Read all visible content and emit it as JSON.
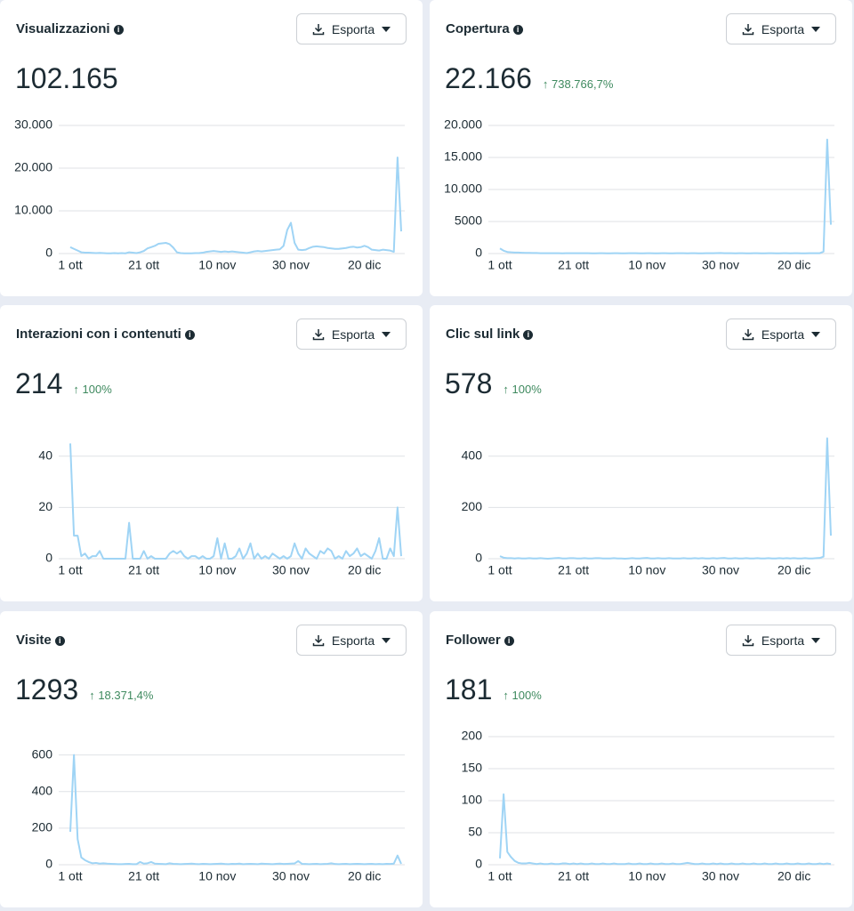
{
  "chart_data": [
    {
      "type": "line",
      "title": "Visualizzazioni",
      "total": "102.165",
      "export": "Esporta",
      "color": "#9fd4f5",
      "grid": true,
      "ylim": [
        0,
        30000
      ],
      "yticks": [
        0,
        {
          "value": 10000,
          "label": "10.000"
        },
        {
          "value": 20000,
          "label": "20.000"
        },
        {
          "value": 30000,
          "label": "30.000"
        }
      ],
      "categories": [
        "1 ott",
        null,
        null,
        null,
        null,
        null,
        null,
        null,
        null,
        null,
        null,
        null,
        null,
        null,
        null,
        null,
        null,
        null,
        null,
        null,
        "21 ott",
        null,
        null,
        null,
        null,
        null,
        null,
        null,
        null,
        null,
        null,
        null,
        null,
        null,
        null,
        null,
        null,
        null,
        null,
        null,
        "10 nov",
        null,
        null,
        null,
        null,
        null,
        null,
        null,
        null,
        null,
        null,
        null,
        null,
        null,
        null,
        null,
        null,
        null,
        null,
        null,
        "30 nov",
        null,
        null,
        null,
        null,
        null,
        null,
        null,
        null,
        null,
        null,
        null,
        null,
        null,
        null,
        null,
        null,
        null,
        null,
        null,
        "20 dic",
        null,
        null,
        null,
        null,
        null,
        null,
        null,
        null,
        null,
        null
      ],
      "values": [
        1500,
        1100,
        700,
        300,
        200,
        200,
        150,
        100,
        150,
        100,
        50,
        50,
        100,
        50,
        100,
        50,
        300,
        200,
        100,
        300,
        600,
        1200,
        1500,
        1800,
        2300,
        2400,
        2500,
        2200,
        1400,
        300,
        100,
        50,
        50,
        50,
        100,
        100,
        200,
        400,
        500,
        600,
        500,
        400,
        500,
        400,
        500,
        400,
        300,
        200,
        100,
        300,
        500,
        600,
        500,
        600,
        700,
        800,
        900,
        1000,
        1800,
        5500,
        7200,
        2500,
        900,
        800,
        900,
        1300,
        1600,
        1700,
        1600,
        1500,
        1300,
        1200,
        1100,
        1100,
        1200,
        1300,
        1500,
        1600,
        1400,
        1500,
        1800,
        1500,
        900,
        800,
        700,
        900,
        800,
        700,
        400,
        22500,
        5200
      ]
    },
    {
      "type": "line",
      "title": "Copertura",
      "total": "22.166",
      "change": "738.766,7%",
      "export": "Esporta",
      "color": "#9fd4f5",
      "grid": true,
      "ylim": [
        0,
        20000
      ],
      "yticks": [
        0,
        5000,
        {
          "value": 10000,
          "label": "10.000"
        },
        {
          "value": 15000,
          "label": "15.000"
        },
        {
          "value": 20000,
          "label": "20.000"
        }
      ],
      "categories": [
        "1 ott",
        null,
        null,
        null,
        null,
        null,
        null,
        null,
        null,
        null,
        null,
        null,
        null,
        null,
        null,
        null,
        null,
        null,
        null,
        null,
        "21 ott",
        null,
        null,
        null,
        null,
        null,
        null,
        null,
        null,
        null,
        null,
        null,
        null,
        null,
        null,
        null,
        null,
        null,
        null,
        null,
        "10 nov",
        null,
        null,
        null,
        null,
        null,
        null,
        null,
        null,
        null,
        null,
        null,
        null,
        null,
        null,
        null,
        null,
        null,
        null,
        null,
        "30 nov",
        null,
        null,
        null,
        null,
        null,
        null,
        null,
        null,
        null,
        null,
        null,
        null,
        null,
        null,
        null,
        null,
        null,
        null,
        null,
        "20 dic",
        null,
        null,
        null,
        null,
        null,
        null,
        null,
        null,
        null,
        null
      ],
      "values": [
        800,
        450,
        250,
        200,
        150,
        150,
        120,
        100,
        100,
        80,
        80,
        60,
        60,
        50,
        60,
        50,
        50,
        40,
        50,
        60,
        60,
        50,
        50,
        60,
        50,
        40,
        40,
        50,
        50,
        40,
        40,
        50,
        50,
        40,
        40,
        50,
        60,
        50,
        40,
        40,
        50,
        50,
        40,
        40,
        50,
        50,
        40,
        40,
        50,
        60,
        50,
        40,
        50,
        50,
        40,
        40,
        50,
        50,
        60,
        70,
        80,
        60,
        50,
        50,
        40,
        50,
        50,
        40,
        40,
        50,
        50,
        40,
        40,
        50,
        50,
        40,
        40,
        50,
        50,
        40,
        50,
        50,
        40,
        40,
        50,
        60,
        50,
        60,
        300,
        17800,
        4500
      ]
    },
    {
      "type": "line",
      "title": "Interazioni con i contenuti",
      "total": "214",
      "change": "100%",
      "export": "Esporta",
      "color": "#9fd4f5",
      "grid": true,
      "ylim": [
        0,
        50
      ],
      "yticks": [
        0,
        20,
        40
      ],
      "categories": [
        "1 ott",
        null,
        null,
        null,
        null,
        null,
        null,
        null,
        null,
        null,
        null,
        null,
        null,
        null,
        null,
        null,
        null,
        null,
        null,
        null,
        "21 ott",
        null,
        null,
        null,
        null,
        null,
        null,
        null,
        null,
        null,
        null,
        null,
        null,
        null,
        null,
        null,
        null,
        null,
        null,
        null,
        "10 nov",
        null,
        null,
        null,
        null,
        null,
        null,
        null,
        null,
        null,
        null,
        null,
        null,
        null,
        null,
        null,
        null,
        null,
        null,
        null,
        "30 nov",
        null,
        null,
        null,
        null,
        null,
        null,
        null,
        null,
        null,
        null,
        null,
        null,
        null,
        null,
        null,
        null,
        null,
        null,
        null,
        "20 dic",
        null,
        null,
        null,
        null,
        null,
        null,
        null,
        null,
        null,
        null
      ],
      "values": [
        45,
        9,
        9,
        1,
        2,
        0,
        1,
        1,
        3,
        0,
        0,
        0,
        0,
        0,
        0,
        0,
        14,
        0,
        0,
        0,
        3,
        0,
        1,
        0,
        0,
        0,
        0,
        2,
        3,
        2,
        3,
        1,
        0,
        1,
        1,
        0,
        1,
        0,
        0,
        1,
        8,
        0,
        6,
        0,
        0,
        1,
        4,
        0,
        2,
        6,
        0,
        2,
        0,
        1,
        0,
        2,
        1,
        0,
        1,
        0,
        1,
        6,
        2,
        0,
        4,
        2,
        1,
        0,
        3,
        2,
        4,
        3,
        0,
        1,
        0,
        3,
        1,
        2,
        4,
        1,
        2,
        1,
        0,
        3,
        8,
        0,
        0,
        4,
        1,
        20,
        1
      ]
    },
    {
      "type": "line",
      "title": "Clic sul link",
      "total": "578",
      "change": "100%",
      "export": "Esporta",
      "color": "#9fd4f5",
      "grid": true,
      "ylim": [
        0,
        500
      ],
      "yticks": [
        0,
        200,
        400
      ],
      "categories": [
        "1 ott",
        null,
        null,
        null,
        null,
        null,
        null,
        null,
        null,
        null,
        null,
        null,
        null,
        null,
        null,
        null,
        null,
        null,
        null,
        null,
        "21 ott",
        null,
        null,
        null,
        null,
        null,
        null,
        null,
        null,
        null,
        null,
        null,
        null,
        null,
        null,
        null,
        null,
        null,
        null,
        null,
        "10 nov",
        null,
        null,
        null,
        null,
        null,
        null,
        null,
        null,
        null,
        null,
        null,
        null,
        null,
        null,
        null,
        null,
        null,
        null,
        null,
        "30 nov",
        null,
        null,
        null,
        null,
        null,
        null,
        null,
        null,
        null,
        null,
        null,
        null,
        null,
        null,
        null,
        null,
        null,
        null,
        null,
        "20 dic",
        null,
        null,
        null,
        null,
        null,
        null,
        null,
        null,
        null,
        null
      ],
      "values": [
        10,
        4,
        2,
        2,
        1,
        2,
        1,
        1,
        2,
        1,
        1,
        2,
        1,
        0,
        1,
        2,
        3,
        1,
        1,
        2,
        2,
        1,
        1,
        2,
        1,
        1,
        2,
        2,
        1,
        1,
        1,
        2,
        1,
        1,
        0,
        1,
        2,
        1,
        1,
        2,
        3,
        1,
        1,
        2,
        1,
        1,
        2,
        1,
        1,
        1,
        2,
        1,
        1,
        2,
        1,
        2,
        1,
        1,
        2,
        1,
        2,
        3,
        1,
        1,
        2,
        1,
        1,
        2,
        1,
        1,
        2,
        1,
        1,
        2,
        1,
        1,
        2,
        1,
        2,
        1,
        2,
        1,
        1,
        2,
        1,
        1,
        2,
        3,
        8,
        470,
        90
      ]
    },
    {
      "type": "line",
      "title": "Visite",
      "total": "1293",
      "change": "18.371,4%",
      "export": "Esporta",
      "color": "#9fd4f5",
      "grid": true,
      "ylim": [
        0,
        700
      ],
      "yticks": [
        0,
        200,
        400,
        600
      ],
      "categories": [
        "1 ott",
        null,
        null,
        null,
        null,
        null,
        null,
        null,
        null,
        null,
        null,
        null,
        null,
        null,
        null,
        null,
        null,
        null,
        null,
        null,
        "21 ott",
        null,
        null,
        null,
        null,
        null,
        null,
        null,
        null,
        null,
        null,
        null,
        null,
        null,
        null,
        null,
        null,
        null,
        null,
        null,
        "10 nov",
        null,
        null,
        null,
        null,
        null,
        null,
        null,
        null,
        null,
        null,
        null,
        null,
        null,
        null,
        null,
        null,
        null,
        null,
        null,
        "30 nov",
        null,
        null,
        null,
        null,
        null,
        null,
        null,
        null,
        null,
        null,
        null,
        null,
        null,
        null,
        null,
        null,
        null,
        null,
        null,
        "20 dic",
        null,
        null,
        null,
        null,
        null,
        null,
        null,
        null,
        null,
        null
      ],
      "values": [
        180,
        600,
        140,
        40,
        25,
        15,
        8,
        10,
        6,
        8,
        6,
        5,
        4,
        3,
        3,
        4,
        5,
        3,
        3,
        15,
        6,
        8,
        15,
        6,
        5,
        4,
        3,
        8,
        5,
        4,
        3,
        4,
        5,
        6,
        4,
        3,
        5,
        4,
        3,
        4,
        5,
        6,
        4,
        3,
        5,
        4,
        6,
        3,
        4,
        5,
        4,
        3,
        6,
        5,
        4,
        3,
        5,
        6,
        4,
        5,
        6,
        7,
        20,
        5,
        4,
        3,
        4,
        5,
        3,
        4,
        5,
        8,
        4,
        3,
        4,
        5,
        3,
        4,
        5,
        4,
        3,
        4,
        5,
        3,
        4,
        3,
        5,
        4,
        6,
        50,
        5
      ]
    },
    {
      "type": "line",
      "title": "Follower",
      "total": "181",
      "change": "100%",
      "export": "Esporta",
      "color": "#9fd4f5",
      "grid": true,
      "ylim": [
        0,
        200
      ],
      "yticks": [
        0,
        50,
        100,
        150,
        200
      ],
      "categories": [
        "1 ott",
        null,
        null,
        null,
        null,
        null,
        null,
        null,
        null,
        null,
        null,
        null,
        null,
        null,
        null,
        null,
        null,
        null,
        null,
        null,
        "21 ott",
        null,
        null,
        null,
        null,
        null,
        null,
        null,
        null,
        null,
        null,
        null,
        null,
        null,
        null,
        null,
        null,
        null,
        null,
        null,
        "10 nov",
        null,
        null,
        null,
        null,
        null,
        null,
        null,
        null,
        null,
        null,
        null,
        null,
        null,
        null,
        null,
        null,
        null,
        null,
        null,
        "30 nov",
        null,
        null,
        null,
        null,
        null,
        null,
        null,
        null,
        null,
        null,
        null,
        null,
        null,
        null,
        null,
        null,
        null,
        null,
        null,
        "20 dic",
        null,
        null,
        null,
        null,
        null,
        null,
        null,
        null,
        null,
        null
      ],
      "values": [
        10,
        110,
        20,
        12,
        6,
        3,
        2,
        2,
        3,
        2,
        1,
        2,
        1,
        1,
        2,
        1,
        1,
        2,
        2,
        1,
        2,
        1,
        2,
        1,
        1,
        2,
        1,
        1,
        2,
        1,
        1,
        2,
        1,
        1,
        1,
        2,
        1,
        1,
        2,
        1,
        1,
        2,
        1,
        1,
        2,
        1,
        1,
        2,
        1,
        1,
        2,
        3,
        2,
        1,
        1,
        2,
        1,
        1,
        2,
        1,
        2,
        1,
        1,
        2,
        1,
        1,
        2,
        1,
        1,
        2,
        1,
        1,
        2,
        1,
        1,
        2,
        1,
        1,
        2,
        1,
        1,
        2,
        1,
        1,
        2,
        1,
        1,
        2,
        1,
        2,
        1
      ]
    }
  ]
}
